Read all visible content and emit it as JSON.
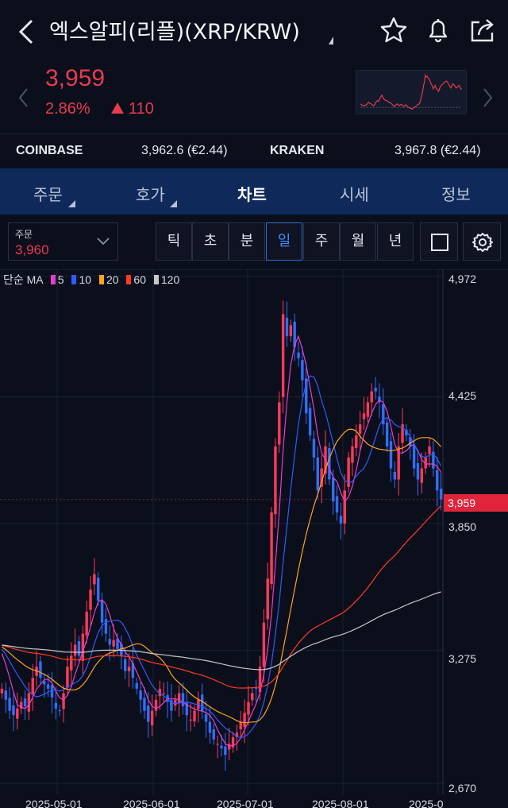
{
  "header": {
    "title": "엑스알피(리플)(XRP/KRW)",
    "icons": [
      "back-chevron-icon",
      "star-icon",
      "bell-icon",
      "share-icon"
    ]
  },
  "quote": {
    "price": "3,959",
    "change_pct": "2.86%",
    "change_abs": "110",
    "direction": "up",
    "color": "#e83b4f"
  },
  "exchanges": [
    {
      "name": "COINBASE",
      "value": "3,962.6 (€2.44)"
    },
    {
      "name": "KRAKEN",
      "value": "3,967.8 (€2.44)"
    }
  ],
  "tabs": [
    {
      "label": "주문",
      "has_menu": true
    },
    {
      "label": "호가",
      "has_menu": true
    },
    {
      "label": "차트",
      "active": true
    },
    {
      "label": "시세"
    },
    {
      "label": "정보"
    }
  ],
  "toolbar": {
    "order_label": "주문",
    "order_value": "3,960",
    "periods": [
      "틱",
      "초",
      "분",
      "일",
      "주",
      "월",
      "년"
    ],
    "active_period": "일",
    "icons": [
      "square-icon",
      "settings-gear-icon"
    ]
  },
  "chart_data": {
    "type": "candlestick",
    "indicator": "단순 MA",
    "ma_series": [
      {
        "name": "5",
        "color": "#e83bd1"
      },
      {
        "name": "10",
        "color": "#2f5bff"
      },
      {
        "name": "20",
        "color": "#ffa21f"
      },
      {
        "name": "60",
        "color": "#ff3a22"
      },
      {
        "name": "120",
        "color": "#c8c8c8"
      }
    ],
    "y_ticks": [
      4972,
      4425,
      3850,
      3275,
      2670
    ],
    "y_tick_labels": [
      "4,972",
      "4,425",
      "3,850",
      "3,275",
      "2,670"
    ],
    "ylim": [
      2620,
      5000
    ],
    "x_labels": [
      "2025-05-01",
      "2025-06-01",
      "2025-07-01",
      "2025-08-01",
      "2025-0"
    ],
    "current_price_label": "3,959",
    "current_price": 3959,
    "up_color": "#ff3a5a",
    "down_color": "#2f6fff",
    "close": [
      3100,
      3050,
      3000,
      2980,
      3010,
      3040,
      3020,
      3080,
      3150,
      3200,
      3150,
      3120,
      3100,
      3060,
      3010,
      3000,
      3080,
      3200,
      3250,
      3300,
      3250,
      3350,
      3450,
      3550,
      3620,
      3500,
      3400,
      3350,
      3300,
      3320,
      3280,
      3250,
      3180,
      3200,
      3150,
      3100,
      3050,
      3000,
      2950,
      3000,
      3050,
      3100,
      3080,
      3040,
      3000,
      3050,
      3080,
      3020,
      2980,
      2960,
      3000,
      3050,
      3000,
      2950,
      2900,
      2870,
      2850,
      2830,
      2800,
      2850,
      2880,
      2900,
      2950,
      2990,
      3040,
      3080,
      3100,
      3200,
      3400,
      3600,
      3900,
      4200,
      4400,
      4800,
      4700,
      4750,
      4650,
      4600,
      4500,
      4350,
      4250,
      4150,
      4000,
      4100,
      4200,
      4050,
      3950,
      3900,
      3850,
      4000,
      4150,
      4200,
      4250,
      4300,
      4350,
      4400,
      4450,
      4450,
      4400,
      4300,
      4200,
      4100,
      4050,
      4200,
      4300,
      4250,
      4200,
      4100,
      4050,
      4100,
      4150,
      4200,
      4100,
      4000,
      3959
    ]
  }
}
